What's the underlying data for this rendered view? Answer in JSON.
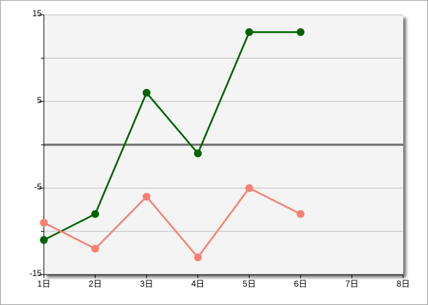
{
  "chart_data": {
    "type": "line",
    "categories": [
      "1日",
      "2日",
      "3日",
      "4日",
      "5日",
      "6日",
      "7日",
      "8日"
    ],
    "series": [
      {
        "color": "#006400",
        "values": [
          -11,
          -8,
          6,
          -1,
          13,
          13,
          null,
          null
        ]
      },
      {
        "color": "#fa8072",
        "values": [
          -9,
          -12,
          -6,
          -13,
          -5,
          -8,
          null,
          null
        ]
      }
    ],
    "ylim": [
      -15,
      15
    ],
    "yticks": [
      -15,
      -5,
      5,
      15
    ],
    "minor_yticks": [
      -10,
      0,
      10
    ],
    "grid": true,
    "zero_line": true
  }
}
